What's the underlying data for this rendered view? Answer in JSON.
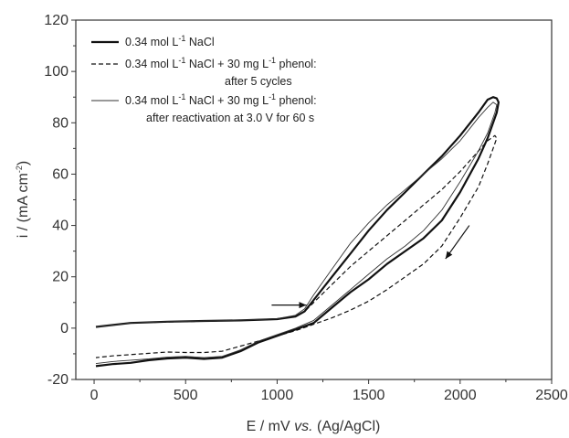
{
  "chart_data": {
    "type": "line",
    "title": "",
    "xlabel": {
      "pre": "E / mV ",
      "italic": "vs.",
      "post": " (Ag/AgCl)"
    },
    "ylabel": {
      "pre": "i / (mA cm",
      "sup": "-2",
      "post": ")"
    },
    "xlim": [
      -100,
      2500
    ],
    "ylim": [
      -20,
      120
    ],
    "xticks": [
      "0",
      "500",
      "1000",
      "1500",
      "2000",
      "2500"
    ],
    "yticks": [
      "-20",
      "0",
      "20",
      "40",
      "60",
      "80",
      "100",
      "120"
    ],
    "grid": false,
    "legend_position": "top-left",
    "legend": [
      {
        "line1_parts": [
          "0.34 mol L",
          "-1",
          " NaCl"
        ],
        "line2": "",
        "style": "thick-solid"
      },
      {
        "line1_parts": [
          "0.34 mol L",
          "-1",
          " NaCl + 30 mg L",
          "-1",
          " phenol:"
        ],
        "line2": "after 5 cycles",
        "style": "dashed"
      },
      {
        "line1_parts": [
          "0.34 mol L",
          "-1",
          " NaCl + 30 mg L",
          "-1",
          " phenol:"
        ],
        "line2": "after reactivation at 3.0 V for 60 s",
        "style": "thin-solid"
      }
    ],
    "series": [
      {
        "style": "thick-solid",
        "color": "#111111",
        "x": [
          10,
          200,
          400,
          600,
          800,
          1000,
          1100,
          1150,
          1200,
          1300,
          1400,
          1500,
          1600,
          1700,
          1800,
          1900,
          2000,
          2100,
          2150,
          2180,
          2200,
          2210,
          2200,
          2150,
          2100,
          2000,
          1900,
          1800,
          1700,
          1600,
          1500,
          1400,
          1300,
          1200,
          1100,
          1000,
          900,
          800,
          700,
          600,
          500,
          400,
          300,
          200,
          100,
          10
        ],
        "y": [
          0.5,
          2.0,
          2.5,
          2.8,
          3.0,
          3.5,
          4.5,
          6.5,
          11.0,
          20.0,
          29.0,
          38.0,
          46.0,
          53.0,
          60.0,
          67.0,
          75.0,
          84.0,
          89.0,
          90.0,
          89.5,
          88.0,
          84.0,
          74.0,
          66.0,
          53.0,
          42.0,
          35.0,
          30.0,
          25.0,
          19.0,
          14.0,
          8.0,
          2.0,
          -0.5,
          -3.0,
          -5.5,
          -9.0,
          -11.5,
          -12.0,
          -11.5,
          -11.8,
          -12.5,
          -13.5,
          -14.0,
          -14.8
        ]
      },
      {
        "style": "dashed",
        "color": "#111111",
        "x": [
          10,
          200,
          400,
          600,
          800,
          1000,
          1100,
          1150,
          1200,
          1300,
          1400,
          1500,
          1600,
          1700,
          1800,
          1900,
          2000,
          2100,
          2150,
          2190,
          2200,
          2180,
          2150,
          2100,
          2000,
          1900,
          1800,
          1700,
          1600,
          1500,
          1400,
          1300,
          1200,
          1100,
          1000,
          900,
          800,
          700,
          600,
          500,
          400,
          300,
          200,
          100,
          10
        ],
        "y": [
          0.5,
          2.0,
          2.4,
          2.7,
          3.0,
          3.6,
          4.6,
          6.5,
          10.0,
          17.0,
          24.0,
          30.0,
          36.0,
          42.0,
          48.0,
          54.0,
          61.0,
          69.0,
          73.0,
          75.0,
          74.0,
          70.0,
          64.0,
          55.0,
          43.0,
          32.0,
          25.0,
          20.0,
          15.0,
          10.5,
          7.0,
          4.0,
          1.5,
          -1.0,
          -3.0,
          -5.0,
          -7.0,
          -9.0,
          -9.5,
          -9.5,
          -9.3,
          -9.8,
          -10.3,
          -10.8,
          -11.5
        ]
      },
      {
        "style": "thin-solid",
        "color": "#333333",
        "x": [
          10,
          200,
          400,
          600,
          800,
          1000,
          1100,
          1150,
          1200,
          1300,
          1400,
          1500,
          1600,
          1700,
          1800,
          1900,
          2000,
          2100,
          2150,
          2180,
          2200,
          2190,
          2150,
          2100,
          2000,
          1900,
          1800,
          1700,
          1600,
          1500,
          1400,
          1300,
          1200,
          1100,
          1000,
          900,
          800,
          700,
          600,
          500,
          400,
          300,
          200,
          100,
          10
        ],
        "y": [
          0.5,
          2.0,
          2.5,
          2.8,
          3.1,
          3.7,
          5.0,
          7.5,
          13.0,
          23.0,
          33.0,
          41.0,
          48.0,
          54.0,
          60.0,
          66.0,
          73.0,
          82.0,
          86.0,
          88.0,
          87.0,
          84.0,
          76.0,
          69.0,
          57.0,
          46.0,
          38.0,
          32.0,
          27.0,
          21.0,
          15.0,
          9.0,
          3.0,
          0.0,
          -2.5,
          -5.0,
          -8.5,
          -11.0,
          -11.5,
          -11.0,
          -11.3,
          -12.0,
          -12.5,
          -13.0,
          -13.8
        ]
      }
    ],
    "annotations": [
      {
        "type": "arrow",
        "from": [
          970,
          9
        ],
        "to": [
          1160,
          9
        ],
        "description": "forward scan direction"
      },
      {
        "type": "arrow",
        "from": [
          2050,
          40
        ],
        "to": [
          1920,
          27
        ],
        "description": "reverse scan direction"
      }
    ]
  }
}
